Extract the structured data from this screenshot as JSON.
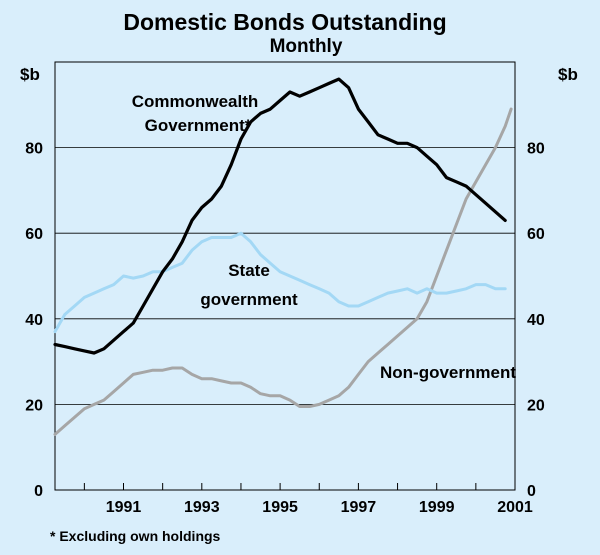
{
  "chart_data": {
    "type": "line",
    "title": "Domestic Bonds Outstanding",
    "subtitle": "Monthly",
    "ylabel_left": "$b",
    "ylabel_right": "$b",
    "xlim": [
      1989.25,
      2001.0
    ],
    "ylim": [
      0,
      100
    ],
    "x_ticks": [
      "1991",
      "1993",
      "1995",
      "1997",
      "1999",
      "2001"
    ],
    "y_ticks": [
      "0",
      "20",
      "40",
      "60",
      "80"
    ],
    "grid": true,
    "footnote": "* Excluding own holdings",
    "series": [
      {
        "name": "Commonwealth Government*",
        "label_lines": [
          "Commonwealth",
          "Government*"
        ],
        "color": "#000000",
        "x": [
          1989.25,
          1989.5,
          1989.75,
          1990.0,
          1990.25,
          1990.5,
          1990.75,
          1991.0,
          1991.25,
          1991.5,
          1991.75,
          1992.0,
          1992.25,
          1992.5,
          1992.75,
          1993.0,
          1993.25,
          1993.5,
          1993.75,
          1994.0,
          1994.25,
          1994.5,
          1994.75,
          1995.0,
          1995.25,
          1995.5,
          1995.75,
          1996.0,
          1996.25,
          1996.5,
          1996.75,
          1997.0,
          1997.25,
          1997.5,
          1997.75,
          1998.0,
          1998.25,
          1998.5,
          1998.75,
          1999.0,
          1999.25,
          1999.5,
          1999.75,
          2000.0,
          2000.25,
          2000.5,
          2000.75
        ],
        "values": [
          34,
          33.5,
          33,
          32.5,
          32,
          33,
          35,
          37,
          39,
          43,
          47,
          51,
          54,
          58,
          63,
          66,
          68,
          71,
          76,
          82,
          86,
          88,
          89,
          91,
          93,
          92,
          93,
          94,
          95,
          96,
          94,
          89,
          86,
          83,
          82,
          81,
          81,
          80,
          78,
          76,
          73,
          72,
          71,
          69,
          67,
          65,
          63
        ]
      },
      {
        "name": "State government",
        "label_lines": [
          "State",
          "government"
        ],
        "color": "#a3d8f5",
        "x": [
          1989.25,
          1989.5,
          1989.75,
          1990.0,
          1990.25,
          1990.5,
          1990.75,
          1991.0,
          1991.25,
          1991.5,
          1991.75,
          1992.0,
          1992.25,
          1992.5,
          1992.75,
          1993.0,
          1993.25,
          1993.5,
          1993.75,
          1994.0,
          1994.25,
          1994.5,
          1994.75,
          1995.0,
          1995.25,
          1995.5,
          1995.75,
          1996.0,
          1996.25,
          1996.5,
          1996.75,
          1997.0,
          1997.25,
          1997.5,
          1997.75,
          1998.0,
          1998.25,
          1998.5,
          1998.75,
          1999.0,
          1999.25,
          1999.5,
          1999.75,
          2000.0,
          2000.25,
          2000.5,
          2000.75
        ],
        "values": [
          37,
          41,
          43,
          45,
          46,
          47,
          48,
          50,
          49.5,
          50,
          51,
          51,
          52,
          53,
          56,
          58,
          59,
          59,
          59,
          60,
          58,
          55,
          53,
          51,
          50,
          49,
          48,
          47,
          46,
          44,
          43,
          43,
          44,
          45,
          46,
          46.5,
          47,
          46,
          47,
          46,
          46,
          46.5,
          47,
          48,
          48,
          47,
          47
        ]
      },
      {
        "name": "Non-government",
        "label_lines": [
          "Non-government"
        ],
        "color": "#a6a6a6",
        "x": [
          1989.25,
          1989.5,
          1989.75,
          1990.0,
          1990.25,
          1990.5,
          1990.75,
          1991.0,
          1991.25,
          1991.5,
          1991.75,
          1992.0,
          1992.25,
          1992.5,
          1992.75,
          1993.0,
          1993.25,
          1993.5,
          1993.75,
          1994.0,
          1994.25,
          1994.5,
          1994.75,
          1995.0,
          1995.25,
          1995.5,
          1995.75,
          1996.0,
          1996.25,
          1996.5,
          1996.75,
          1997.0,
          1997.25,
          1997.5,
          1997.75,
          1998.0,
          1998.25,
          1998.5,
          1998.75,
          1999.0,
          1999.25,
          1999.5,
          1999.75,
          2000.0,
          2000.25,
          2000.5,
          2000.75,
          2000.9
        ],
        "values": [
          13,
          15,
          17,
          19,
          20,
          21,
          23,
          25,
          27,
          27.5,
          28,
          28,
          28.5,
          28.5,
          27,
          26,
          26,
          25.5,
          25,
          25,
          24,
          22.5,
          22,
          22,
          21,
          19.5,
          19.5,
          20,
          21,
          22,
          24,
          27,
          30,
          32,
          34,
          36,
          38,
          40,
          44,
          50,
          56,
          62,
          68,
          72,
          76,
          80,
          85,
          89
        ]
      }
    ]
  }
}
